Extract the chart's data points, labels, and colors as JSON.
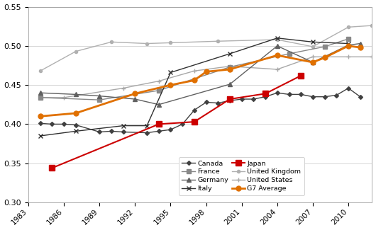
{
  "xlim": [
    1983,
    2012
  ],
  "ylim": [
    0.3,
    0.55
  ],
  "xticks": [
    1983,
    1986,
    1989,
    1992,
    1995,
    1998,
    2001,
    2004,
    2007,
    2010
  ],
  "yticks": [
    0.3,
    0.35,
    0.4,
    0.45,
    0.5,
    0.55
  ],
  "series": {
    "Canada": {
      "years": [
        1984,
        1985,
        1986,
        1987,
        1989,
        1990,
        1991,
        1993,
        1994,
        1995,
        1996,
        1997,
        1998,
        1999,
        2000,
        2001,
        2002,
        2003,
        2004,
        2005,
        2006,
        2007,
        2008,
        2009,
        2010,
        2011
      ],
      "values": [
        0.401,
        0.4,
        0.4,
        0.399,
        0.39,
        0.391,
        0.39,
        0.389,
        0.391,
        0.393,
        0.4,
        0.418,
        0.428,
        0.427,
        0.43,
        0.432,
        0.432,
        0.435,
        0.44,
        0.438,
        0.438,
        0.435,
        0.435,
        0.437,
        0.446,
        0.435
      ],
      "color": "#404040",
      "marker": "D",
      "marker_size": 3,
      "linewidth": 1.0,
      "linestyle": "-",
      "zorder": 3
    },
    "France": {
      "years": [
        1984,
        1989,
        1994,
        2000,
        2005,
        2008,
        2010
      ],
      "values": [
        0.434,
        0.431,
        0.443,
        0.473,
        0.49,
        0.499,
        0.509
      ],
      "color": "#888888",
      "marker": "s",
      "marker_size": 4,
      "linewidth": 1.0,
      "linestyle": "-",
      "zorder": 3
    },
    "Germany": {
      "years": [
        1984,
        1987,
        1989,
        1992,
        1994,
        2000,
        2004,
        2007,
        2010,
        2011
      ],
      "values": [
        0.44,
        0.438,
        0.436,
        0.432,
        0.425,
        0.451,
        0.5,
        0.479,
        0.501,
        0.503
      ],
      "color": "#606060",
      "marker": "^",
      "marker_size": 4,
      "linewidth": 1.0,
      "linestyle": "-",
      "zorder": 3
    },
    "Italy": {
      "years": [
        1984,
        1987,
        1991,
        1993,
        1995,
        2000,
        2004,
        2007,
        2010
      ],
      "values": [
        0.385,
        0.391,
        0.398,
        0.398,
        0.466,
        0.49,
        0.51,
        0.505,
        0.503
      ],
      "color": "#303030",
      "marker": "x",
      "marker_size": 5,
      "linewidth": 1.0,
      "linestyle": "-",
      "zorder": 3
    },
    "Japan": {
      "years": [
        1985,
        1994,
        1997,
        2000,
        2003,
        2006
      ],
      "values": [
        0.344,
        0.4,
        0.403,
        0.432,
        0.439,
        0.462
      ],
      "color": "#cc0000",
      "marker": "s",
      "marker_size": 6,
      "linewidth": 1.5,
      "linestyle": "-",
      "zorder": 5
    },
    "United Kingdom": {
      "years": [
        1984,
        1987,
        1990,
        1993,
        1995,
        1999,
        2004,
        2007,
        2010,
        2012
      ],
      "values": [
        0.468,
        0.493,
        0.505,
        0.503,
        0.504,
        0.506,
        0.508,
        0.499,
        0.524,
        0.526
      ],
      "color": "#b0b0b0",
      "marker": "o",
      "marker_size": 3,
      "linewidth": 1.0,
      "linestyle": "-",
      "zorder": 2
    },
    "United States": {
      "years": [
        1984,
        1986,
        1991,
        1994,
        1997,
        2000,
        2004,
        2007,
        2010,
        2012
      ],
      "values": [
        0.434,
        0.434,
        0.446,
        0.455,
        0.468,
        0.474,
        0.47,
        0.486,
        0.486,
        0.486
      ],
      "color": "#a8a8a8",
      "marker": "+",
      "marker_size": 5,
      "linewidth": 1.0,
      "linestyle": "-",
      "zorder": 2
    },
    "G7 Average": {
      "years": [
        1984,
        1987,
        1992,
        1995,
        1997,
        1998,
        2000,
        2004,
        2007,
        2008,
        2010,
        2011
      ],
      "values": [
        0.41,
        0.414,
        0.439,
        0.45,
        0.456,
        0.467,
        0.47,
        0.488,
        0.479,
        0.485,
        0.5,
        0.498
      ],
      "color": "#e07000",
      "marker": "o",
      "marker_size": 5,
      "linewidth": 2.0,
      "linestyle": "-",
      "zorder": 6
    }
  },
  "legend_order": [
    "Canada",
    "France",
    "Germany",
    "Italy",
    "Japan",
    "United Kingdom",
    "United States",
    "G7 Average"
  ]
}
